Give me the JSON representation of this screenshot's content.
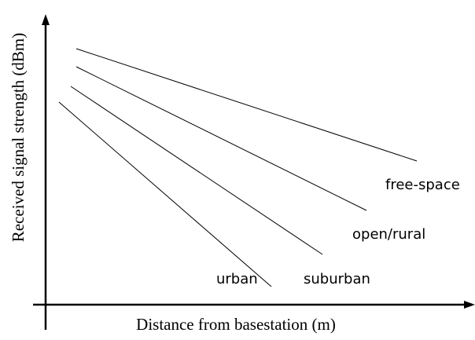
{
  "axes": {
    "x_label": "Distance from basestation (m)",
    "y_label": "Received signal strength (dBm)"
  },
  "lines": [
    {
      "label": "free-space"
    },
    {
      "label": "open/rural"
    },
    {
      "label": "suburban"
    },
    {
      "label": "urban"
    }
  ]
}
